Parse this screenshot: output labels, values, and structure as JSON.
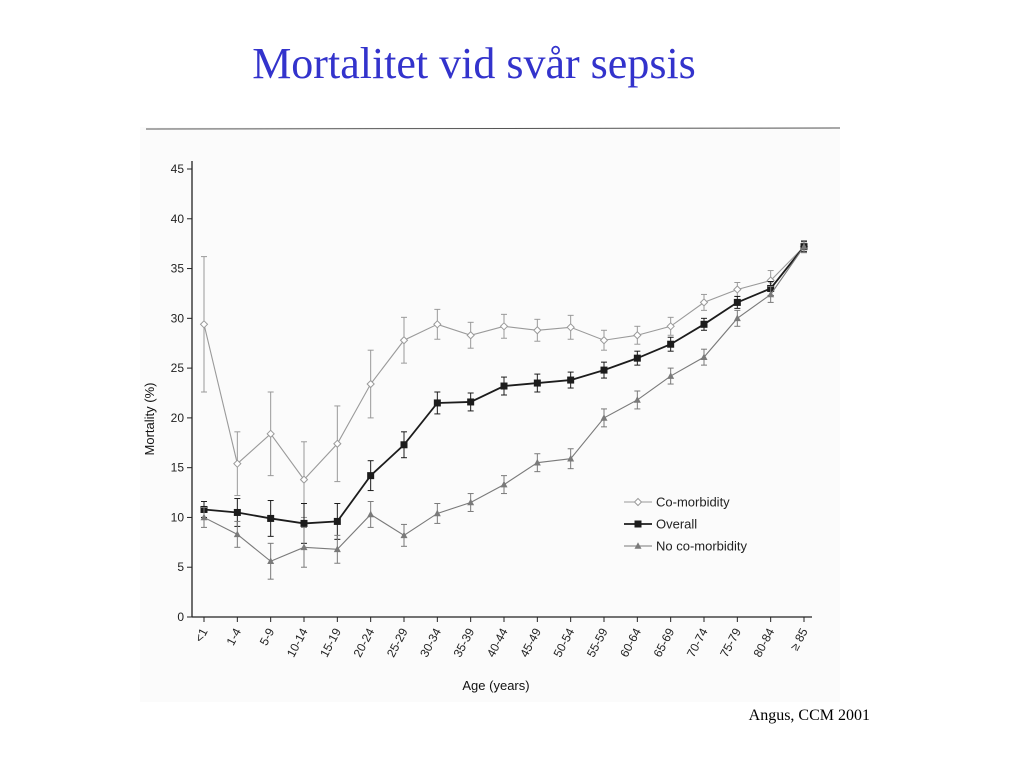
{
  "slide": {
    "title": "Mortalitet vid svår sepsis",
    "citation": "Angus, CCM 2001"
  },
  "chart_data": {
    "type": "line",
    "title": "",
    "xlabel": "Age (years)",
    "ylabel": "Mortality (%)",
    "ylim": [
      0,
      45
    ],
    "yticks": [
      0,
      5,
      10,
      15,
      20,
      25,
      30,
      35,
      40,
      45
    ],
    "grid": false,
    "legend_position": "lower-right",
    "categories": [
      "<1",
      "1-4",
      "5-9",
      "10-14",
      "15-19",
      "20-24",
      "25-29",
      "30-34",
      "35-39",
      "40-44",
      "45-49",
      "50-54",
      "55-59",
      "60-64",
      "65-69",
      "70-74",
      "75-79",
      "80-84",
      "≥ 85"
    ],
    "series": [
      {
        "name": "Co-morbidity",
        "marker": "open-diamond",
        "color": "#9a9a9a",
        "values": [
          29.4,
          15.4,
          18.4,
          13.8,
          17.4,
          23.4,
          27.8,
          29.4,
          28.3,
          29.2,
          28.8,
          29.1,
          27.8,
          28.3,
          29.2,
          31.6,
          32.9,
          33.8,
          37.2
        ],
        "error": [
          6.8,
          3.2,
          4.2,
          3.8,
          3.8,
          3.4,
          2.3,
          1.5,
          1.3,
          1.2,
          1.1,
          1.2,
          1.0,
          0.9,
          0.9,
          0.8,
          0.7,
          1.0,
          0.6
        ]
      },
      {
        "name": "Overall",
        "marker": "filled-square",
        "color": "#1c1c1c",
        "values": [
          10.8,
          10.5,
          9.9,
          9.4,
          9.6,
          14.2,
          17.3,
          21.5,
          21.6,
          23.2,
          23.5,
          23.8,
          24.8,
          26.0,
          27.4,
          29.4,
          31.6,
          33.0,
          37.2
        ],
        "error": [
          0.8,
          1.4,
          1.8,
          2.0,
          1.8,
          1.5,
          1.3,
          1.1,
          0.9,
          0.9,
          0.9,
          0.8,
          0.8,
          0.7,
          0.7,
          0.6,
          0.6,
          0.7,
          0.5
        ]
      },
      {
        "name": "No co-morbidity",
        "marker": "filled-triangle",
        "color": "#7a7a7a",
        "values": [
          10.0,
          8.3,
          5.6,
          7.0,
          6.8,
          10.3,
          8.2,
          10.4,
          11.5,
          13.3,
          15.5,
          15.9,
          20.0,
          21.8,
          24.2,
          26.1,
          30.0,
          32.4,
          37.2
        ],
        "error": [
          1.0,
          1.3,
          1.8,
          2.0,
          1.4,
          1.3,
          1.1,
          1.0,
          0.9,
          0.9,
          0.9,
          1.0,
          0.9,
          0.9,
          0.8,
          0.8,
          0.8,
          0.8,
          0.6
        ]
      }
    ]
  }
}
